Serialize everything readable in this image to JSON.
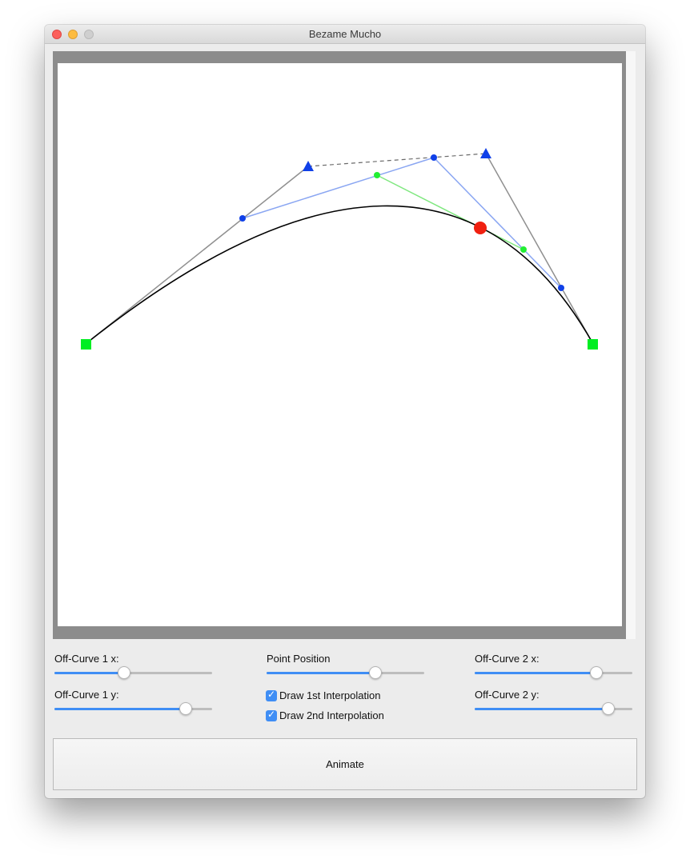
{
  "window": {
    "title": "Bezame Mucho"
  },
  "controls": {
    "offcurve1_x": {
      "label": "Off-Curve 1 x:",
      "value": 0.44
    },
    "offcurve1_y": {
      "label": "Off-Curve 1 y:",
      "value": 0.83
    },
    "point_position": {
      "label": "Point Position",
      "value": 0.69
    },
    "draw_1st": {
      "label": "Draw 1st Interpolation",
      "checked": true
    },
    "draw_2nd": {
      "label": "Draw 2nd Interpolation",
      "checked": true
    },
    "offcurve2_x": {
      "label": "Off-Curve 2 x:",
      "value": 0.77
    },
    "offcurve2_y": {
      "label": "Off-Curve 2 y:",
      "value": 0.85
    }
  },
  "animate_button": {
    "label": "Animate"
  },
  "icons": {
    "on_curve_point": "green-square",
    "off_curve_handle": "blue-triangle",
    "first_interpolation_point": "blue-dot",
    "second_interpolation_point": "green-dot",
    "curve_point": "red-dot"
  },
  "colors": {
    "curve": "#000000",
    "handle_line": "#8f8f8f",
    "first_interpolation_line": "#8aa6f2",
    "second_interpolation_line": "#7fe87f",
    "on_curve": "#00ee22",
    "off_curve": "#1040e8",
    "position_point": "#f02010",
    "slider_fill": "#3f8ef5"
  }
}
